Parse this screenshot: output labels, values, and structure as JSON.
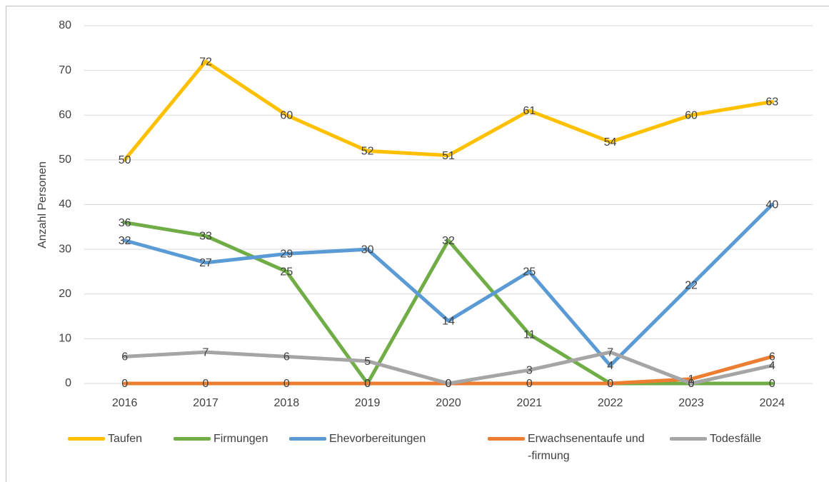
{
  "chart_data": {
    "type": "line",
    "y_label": "Anzahl Personen",
    "categories": [
      "2016",
      "2017",
      "2018",
      "2019",
      "2020",
      "2021",
      "2022",
      "2023",
      "2024"
    ],
    "series": [
      {
        "name": "Taufen",
        "color": "#ffc000",
        "values": [
          50,
          72,
          60,
          52,
          51,
          61,
          54,
          60,
          63
        ]
      },
      {
        "name": "Firmungen",
        "color": "#70ad47",
        "values": [
          36,
          33,
          25,
          0,
          32,
          11,
          0,
          0,
          0
        ]
      },
      {
        "name": "Ehevorbereitungen",
        "color": "#5b9bd5",
        "values": [
          32,
          27,
          29,
          30,
          14,
          25,
          4,
          22,
          40
        ]
      },
      {
        "name": "Erwachsenentaufe und -firmung",
        "color": "#ed7d31",
        "values": [
          0,
          0,
          0,
          0,
          0,
          0,
          0,
          1,
          6
        ]
      },
      {
        "name": "Todesfälle",
        "color": "#a5a5a5",
        "values": [
          6,
          7,
          6,
          5,
          0,
          3,
          7,
          0,
          4
        ]
      }
    ],
    "ylim": [
      0,
      80
    ],
    "yticks": [
      0,
      10,
      20,
      30,
      40,
      50,
      60,
      70,
      80
    ],
    "grid": true,
    "legend": "bottom"
  }
}
